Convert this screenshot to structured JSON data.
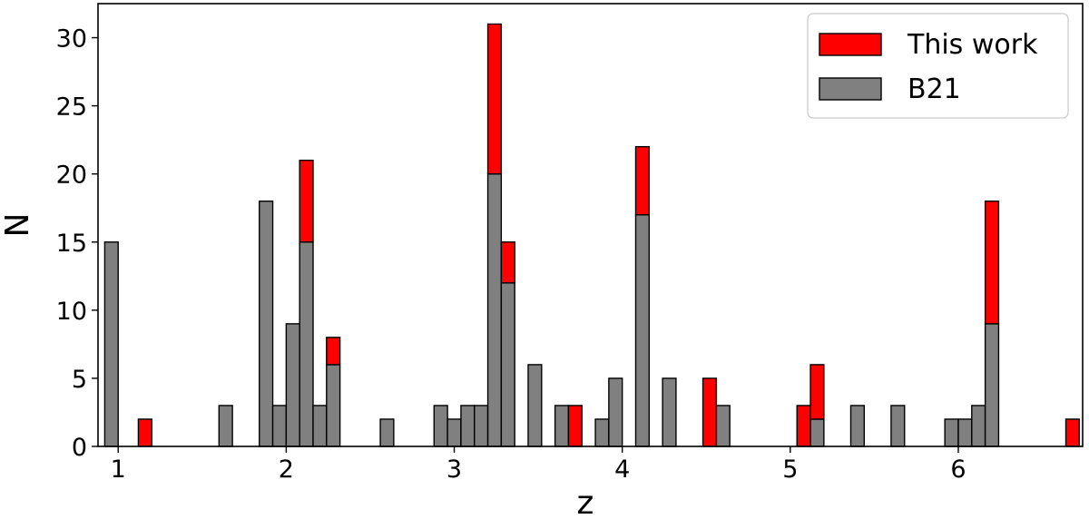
{
  "chart_data": {
    "type": "bar",
    "subtype": "stacked-histogram",
    "xlabel": "z",
    "ylabel": "N",
    "xlim": [
      0.88,
      6.74
    ],
    "ylim": [
      0,
      32.5
    ],
    "xticks": [
      1,
      2,
      3,
      4,
      5,
      6
    ],
    "yticks": [
      0,
      5,
      10,
      15,
      20,
      25,
      30
    ],
    "bin_width": 0.08,
    "legend_position": "top-right",
    "series": [
      {
        "name": "B21",
        "color": "#808080",
        "bins": [
          {
            "x": 0.96,
            "y": 15
          },
          {
            "x": 1.64,
            "y": 3
          },
          {
            "x": 1.88,
            "y": 18
          },
          {
            "x": 1.96,
            "y": 3
          },
          {
            "x": 2.04,
            "y": 9
          },
          {
            "x": 2.12,
            "y": 15
          },
          {
            "x": 2.2,
            "y": 3
          },
          {
            "x": 2.28,
            "y": 6
          },
          {
            "x": 2.6,
            "y": 2
          },
          {
            "x": 2.92,
            "y": 3
          },
          {
            "x": 3.0,
            "y": 2
          },
          {
            "x": 3.08,
            "y": 3
          },
          {
            "x": 3.16,
            "y": 3
          },
          {
            "x": 3.24,
            "y": 20
          },
          {
            "x": 3.32,
            "y": 12
          },
          {
            "x": 3.48,
            "y": 6
          },
          {
            "x": 3.64,
            "y": 3
          },
          {
            "x": 3.88,
            "y": 2
          },
          {
            "x": 3.96,
            "y": 5
          },
          {
            "x": 4.12,
            "y": 17
          },
          {
            "x": 4.28,
            "y": 5
          },
          {
            "x": 4.6,
            "y": 3
          },
          {
            "x": 5.16,
            "y": 2
          },
          {
            "x": 5.4,
            "y": 3
          },
          {
            "x": 5.64,
            "y": 3
          },
          {
            "x": 5.96,
            "y": 2
          },
          {
            "x": 6.04,
            "y": 2
          },
          {
            "x": 6.12,
            "y": 3
          },
          {
            "x": 6.2,
            "y": 9
          }
        ]
      },
      {
        "name": "This work",
        "color": "#ff0000",
        "bins": [
          {
            "x": 1.16,
            "y": 2
          },
          {
            "x": 2.12,
            "y": 6
          },
          {
            "x": 2.28,
            "y": 2
          },
          {
            "x": 3.24,
            "y": 11
          },
          {
            "x": 3.32,
            "y": 3
          },
          {
            "x": 3.72,
            "y": 3
          },
          {
            "x": 4.12,
            "y": 5
          },
          {
            "x": 4.52,
            "y": 5
          },
          {
            "x": 5.08,
            "y": 3
          },
          {
            "x": 5.16,
            "y": 4
          },
          {
            "x": 6.2,
            "y": 9
          },
          {
            "x": 6.68,
            "y": 2
          }
        ]
      }
    ],
    "legend": [
      "This work",
      "B21"
    ]
  }
}
